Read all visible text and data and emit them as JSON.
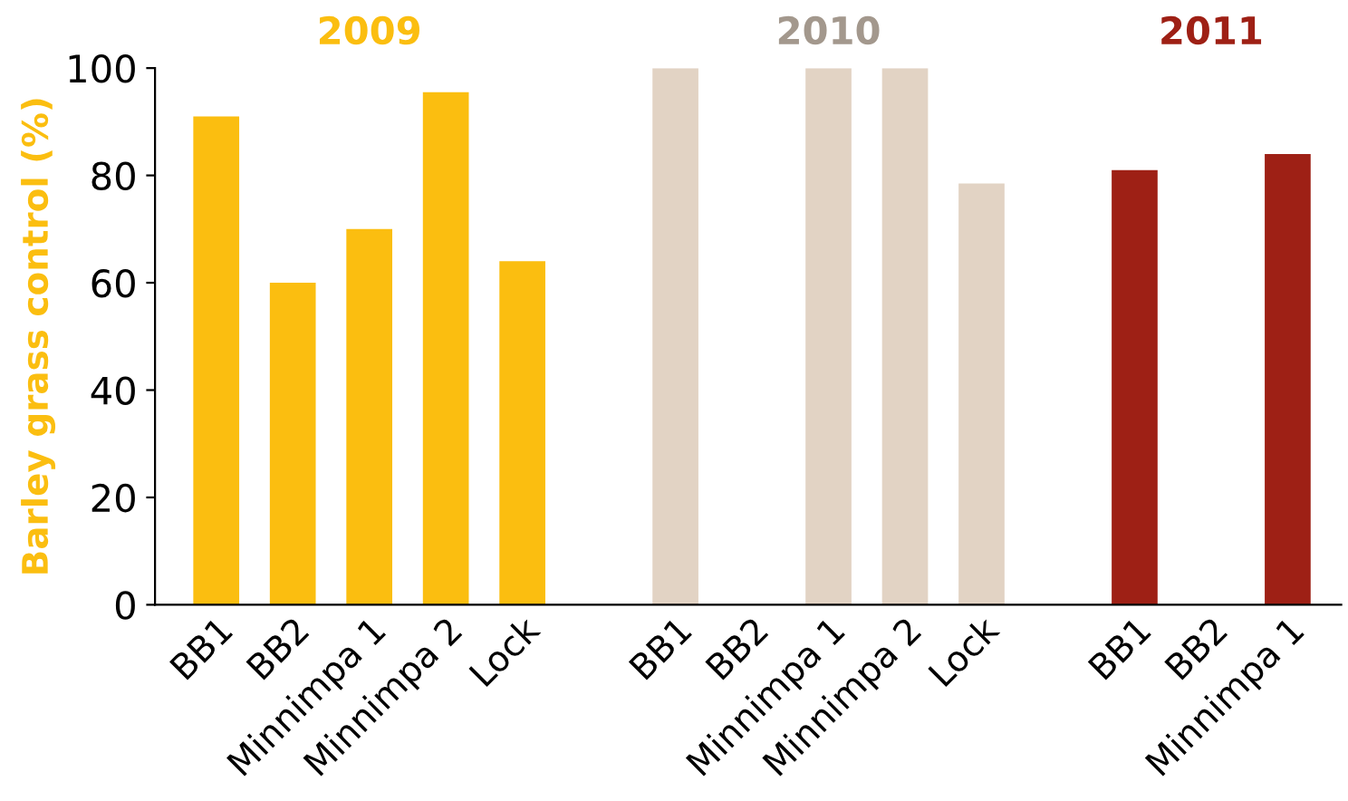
{
  "chart_data": {
    "type": "bar",
    "ylabel": "Barley grass control (%)",
    "categories": [
      "BB1",
      "BB2",
      "Minnimpa 1",
      "Minnimpa 2",
      "Lock",
      null,
      "BB1",
      "BB2",
      "Minnimpa 1",
      "Minnimpa 2",
      "Lock",
      null,
      "BB1",
      "BB2",
      "Minnimpa 1"
    ],
    "series": [
      {
        "name": "2009",
        "color": "#fbbe10",
        "values": [
          91,
          60,
          70,
          95.5,
          64,
          null,
          null,
          null,
          null,
          null,
          null,
          null,
          null,
          null,
          null
        ]
      },
      {
        "name": "2010",
        "color": "#e2d3c4",
        "values": [
          null,
          null,
          null,
          null,
          null,
          null,
          100,
          null,
          100,
          100,
          78.5,
          null,
          null,
          null,
          null
        ]
      },
      {
        "name": "2011",
        "color": "#9e2015",
        "values": [
          null,
          null,
          null,
          null,
          null,
          null,
          null,
          null,
          null,
          null,
          null,
          null,
          81,
          null,
          84
        ]
      }
    ],
    "ylim": [
      0,
      100
    ],
    "yticks": [
      0,
      20,
      40,
      60,
      80,
      100
    ],
    "grid": false,
    "legend": false
  }
}
